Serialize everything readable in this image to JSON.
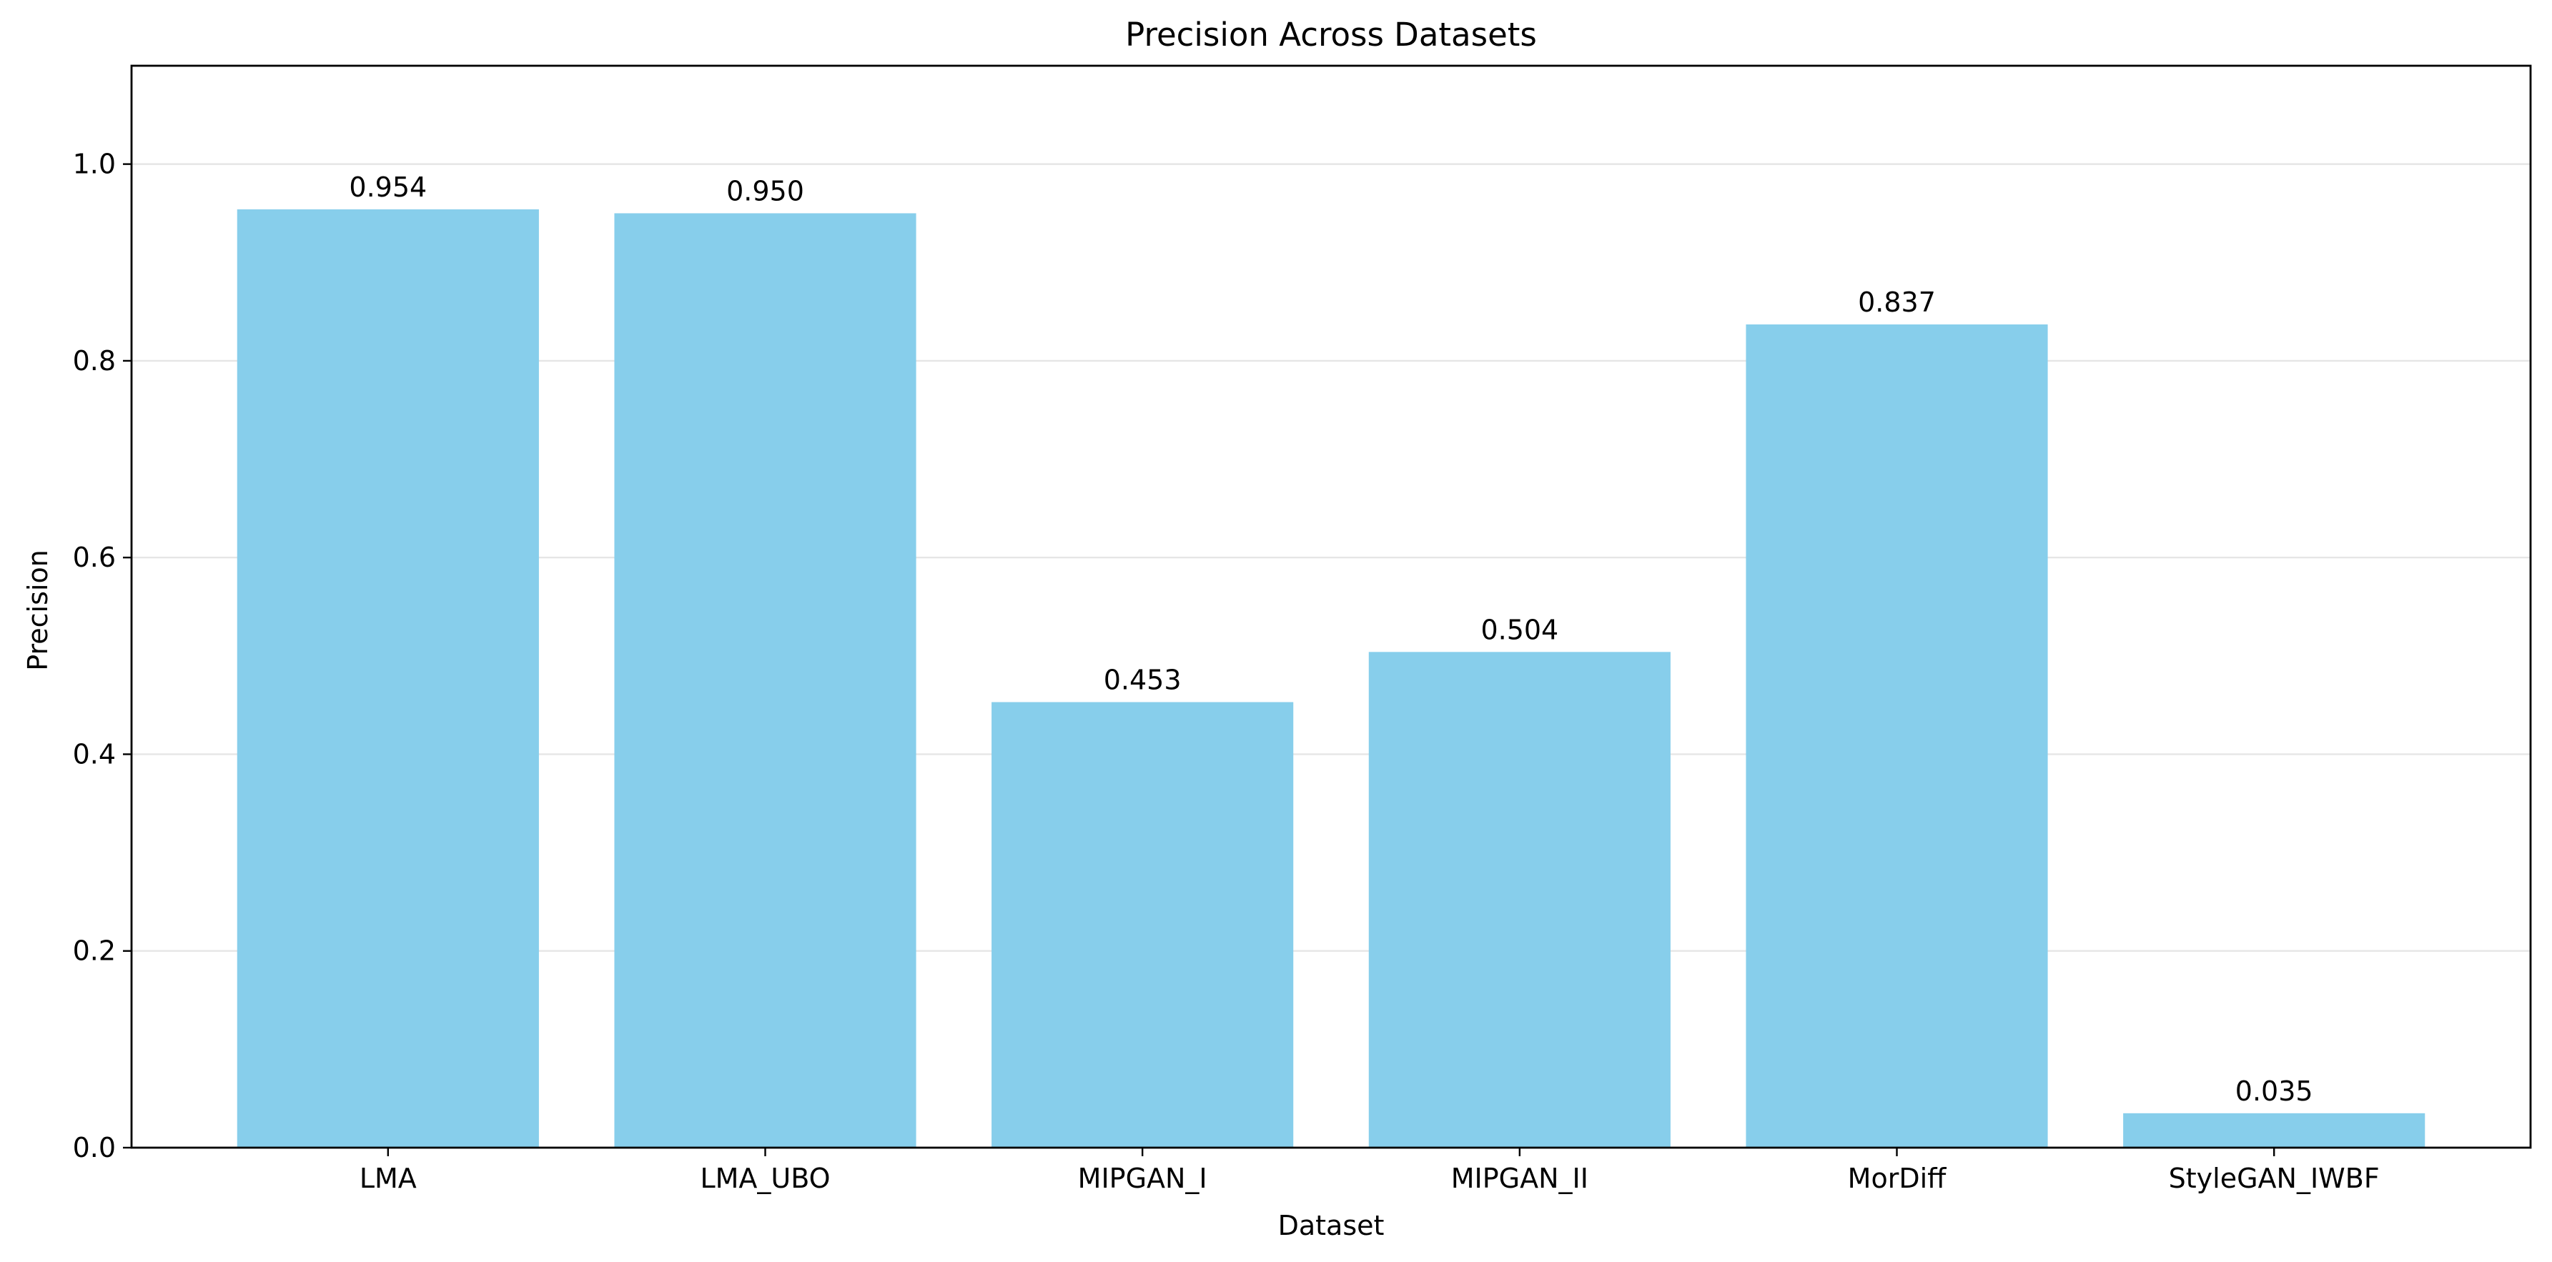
{
  "chart_data": {
    "type": "bar",
    "title": "Precision Across Datasets",
    "xlabel": "Dataset",
    "ylabel": "Precision",
    "categories": [
      "LMA",
      "LMA_UBO",
      "MIPGAN_I",
      "MIPGAN_II",
      "MorDiff",
      "StyleGAN_IWBF"
    ],
    "values": [
      0.954,
      0.95,
      0.453,
      0.504,
      0.837,
      0.035
    ],
    "value_labels": [
      "0.954",
      "0.950",
      "0.453",
      "0.504",
      "0.837",
      "0.035"
    ],
    "ylim": [
      0,
      1.1
    ],
    "yticks": [
      0.0,
      0.2,
      0.4,
      0.6,
      0.8,
      1.0
    ],
    "ytick_labels": [
      "0.0",
      "0.2",
      "0.4",
      "0.6",
      "0.8",
      "1.0"
    ],
    "grid": "y-axis only",
    "legend": "none",
    "bar_color": "#87ceeb"
  }
}
